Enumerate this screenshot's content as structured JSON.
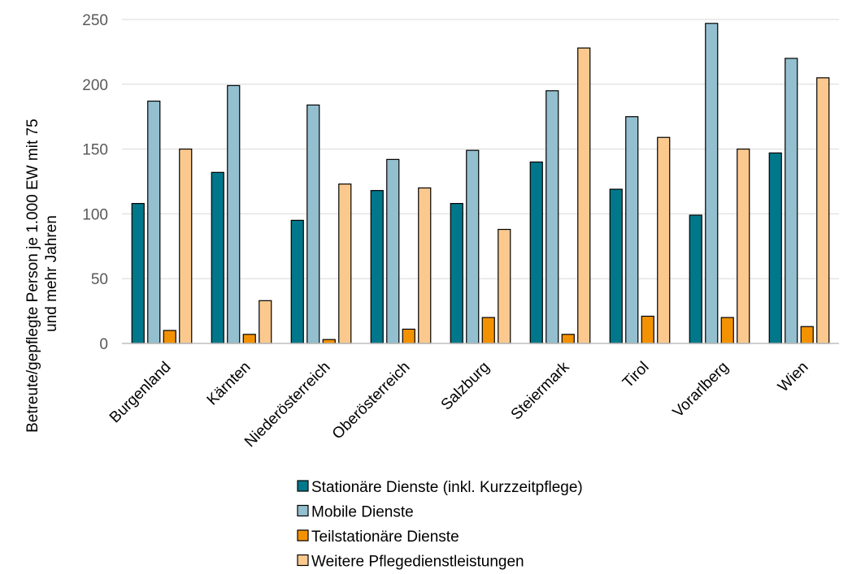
{
  "chart_data": {
    "type": "bar",
    "title": "",
    "xlabel": "",
    "ylabel_lines": [
      "Betreute/gepflegte Person je 1.000 EW mit 75",
      "und mehr Jahren"
    ],
    "ylim": [
      0,
      250
    ],
    "yticks": [
      0,
      50,
      100,
      150,
      200,
      250
    ],
    "grid": true,
    "legend_position": "bottom",
    "categories": [
      "Burgenland",
      "Kärnten",
      "Niederösterreich",
      "Oberösterreich",
      "Salzburg",
      "Steiermark",
      "Tirol",
      "Vorarlberg",
      "Wien"
    ],
    "series": [
      {
        "name": "Stationäre Dienste (inkl. Kurzzeitpflege)",
        "color": "#00778A",
        "values": [
          108,
          132,
          95,
          118,
          108,
          140,
          119,
          99,
          147
        ]
      },
      {
        "name": "Mobile Dienste",
        "color": "#93BFCF",
        "values": [
          187,
          199,
          184,
          142,
          149,
          195,
          175,
          247,
          220
        ]
      },
      {
        "name": "Teilstationäre Dienste",
        "color": "#F39200",
        "values": [
          10,
          7,
          3,
          11,
          20,
          7,
          21,
          20,
          13
        ]
      },
      {
        "name": "Weitere Pflegedienstleistungen",
        "color": "#FBC98E",
        "values": [
          150,
          33,
          123,
          120,
          88,
          228,
          159,
          150,
          205
        ]
      }
    ]
  }
}
